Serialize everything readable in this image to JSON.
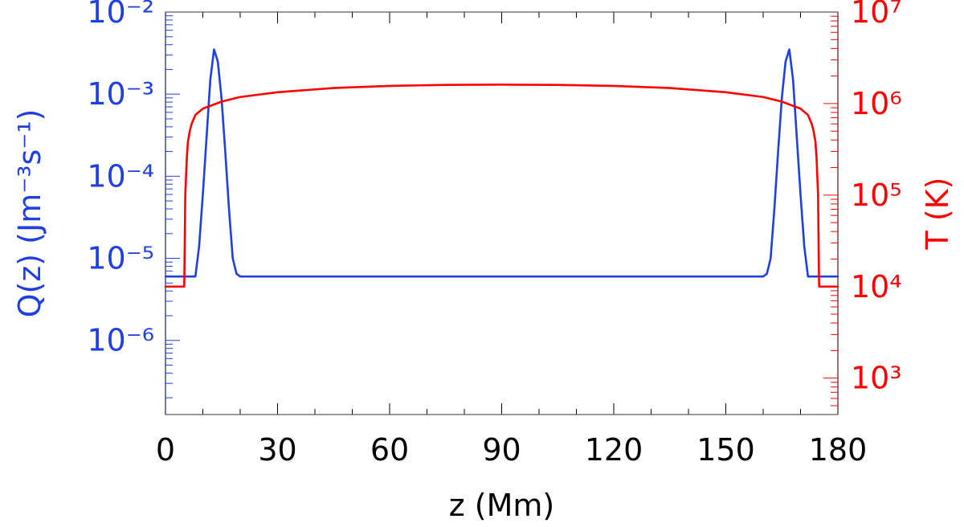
{
  "chart_data": {
    "type": "line",
    "xlabel": "z (Mm)",
    "xlim": [
      0,
      180
    ],
    "xticks": [
      0,
      30,
      60,
      90,
      120,
      150,
      180
    ],
    "grid": false,
    "colors": {
      "left": "#1f3fe0",
      "right": "#ff0000",
      "axes": "#000000"
    },
    "left_axis": {
      "label": "Q(z) (Jm⁻³s⁻¹)",
      "scale": "log",
      "ylim": [
        1.25e-07,
        0.01
      ],
      "tick_labels": [
        "10⁻⁶",
        "10⁻⁵",
        "10⁻⁴",
        "10⁻³",
        "10⁻²"
      ],
      "tick_values": [
        1e-06,
        1e-05,
        0.0001,
        0.001,
        0.01
      ]
    },
    "right_axis": {
      "label": "T (K)",
      "scale": "log",
      "ylim": [
        400,
        10000000.0
      ],
      "tick_labels": [
        "10³",
        "10⁴",
        "10⁵",
        "10⁶",
        "10⁷"
      ],
      "tick_values": [
        1000.0,
        10000.0,
        100000.0,
        1000000.0,
        10000000.0
      ]
    },
    "series": [
      {
        "axis": "left",
        "color": "#1f3fe0",
        "x": [
          0,
          8,
          9,
          10,
          11,
          12,
          13,
          14,
          15,
          16,
          17,
          18,
          19,
          20,
          80,
          160,
          161,
          162,
          163,
          164,
          165,
          166,
          167,
          168,
          169,
          170,
          171,
          172,
          180
        ],
        "y": [
          6e-06,
          6e-06,
          1.4e-05,
          6e-05,
          0.0003,
          0.0015,
          0.0035,
          0.0025,
          0.0009,
          0.0002,
          4e-05,
          1e-05,
          6.5e-06,
          6e-06,
          6e-06,
          6e-06,
          6.5e-06,
          1e-05,
          4e-05,
          0.0002,
          0.0009,
          0.0025,
          0.0035,
          0.0015,
          0.0003,
          6e-05,
          1.4e-05,
          6e-06,
          6e-06
        ]
      },
      {
        "axis": "right",
        "color": "#ff0000",
        "x": [
          0,
          5,
          5.05,
          5.3,
          5.7,
          6,
          6.5,
          7,
          8,
          10,
          15,
          20,
          30,
          45,
          60,
          75,
          90,
          105,
          120,
          135,
          150,
          160,
          165,
          170,
          172,
          173,
          173.5,
          174,
          174.3,
          174.7,
          174.95,
          175,
          180
        ],
        "y": [
          10000.0,
          10000.0,
          12000.0,
          100000.0,
          250000.0,
          380000.0,
          500000.0,
          600000.0,
          750000.0,
          880000.0,
          1050000.0,
          1180000.0,
          1330000.0,
          1480000.0,
          1560000.0,
          1600000.0,
          1610000.0,
          1600000.0,
          1560000.0,
          1480000.0,
          1330000.0,
          1180000.0,
          1050000.0,
          880000.0,
          750000.0,
          600000.0,
          500000.0,
          380000.0,
          250000.0,
          100000.0,
          12000.0,
          10000.0,
          10000.0
        ]
      }
    ]
  }
}
